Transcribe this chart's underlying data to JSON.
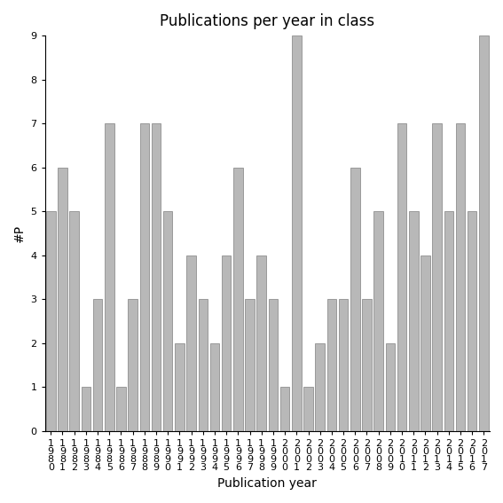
{
  "title": "Publications per year in class",
  "xlabel": "Publication year",
  "ylabel": "#P",
  "years": [
    1980,
    1981,
    1982,
    1983,
    1984,
    1985,
    1986,
    1987,
    1988,
    1989,
    1990,
    1991,
    1992,
    1993,
    1994,
    1995,
    1996,
    1997,
    1998,
    1999,
    2000,
    2001,
    2002,
    2003,
    2004,
    2005,
    2006,
    2007,
    2008,
    2009,
    2010,
    2011,
    2012,
    2013,
    2014,
    2015,
    2016,
    2017
  ],
  "values": [
    5,
    6,
    5,
    1,
    3,
    7,
    1,
    3,
    7,
    7,
    5,
    2,
    4,
    3,
    2,
    4,
    6,
    3,
    4,
    3,
    1,
    9,
    1,
    2,
    3,
    3,
    6,
    3,
    5,
    2,
    7,
    5,
    4,
    7,
    5,
    7,
    5,
    9
  ],
  "bar_color": "#b8b8b8",
  "bar_edge_color": "#808080",
  "ylim": [
    0,
    9
  ],
  "yticks": [
    0,
    1,
    2,
    3,
    4,
    5,
    6,
    7,
    8,
    9
  ],
  "background_color": "#ffffff",
  "title_fontsize": 12,
  "axis_label_fontsize": 10,
  "tick_fontsize": 8
}
